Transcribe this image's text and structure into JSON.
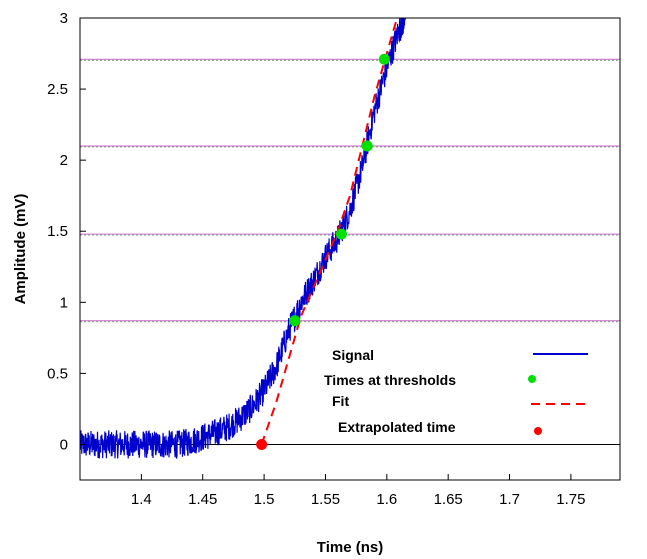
{
  "chart_data": {
    "type": "line",
    "title": "",
    "xlabel": "Time (ns)",
    "ylabel": "Amplitude (mV)",
    "xlim": [
      1.35,
      1.79
    ],
    "ylim": [
      -0.25,
      3.0
    ],
    "x_ticks": [
      "1.4",
      "1.45",
      "1.5",
      "1.55",
      "1.6",
      "1.65",
      "1.7",
      "1.75"
    ],
    "x_tick_values": [
      1.4,
      1.45,
      1.5,
      1.55,
      1.6,
      1.65,
      1.7,
      1.75
    ],
    "y_ticks": [
      "0",
      "0.5",
      "1",
      "1.5",
      "2",
      "2.5",
      "3"
    ],
    "y_tick_values": [
      0,
      0.5,
      1,
      1.5,
      2,
      2.5,
      3
    ],
    "threshold_levels": [
      0.87,
      1.48,
      2.1,
      2.71
    ],
    "zero_line": 0,
    "series": [
      {
        "name": "Signal",
        "color": "#0000cc",
        "style": "solid",
        "x": [
          1.35,
          1.36,
          1.37,
          1.38,
          1.39,
          1.4,
          1.41,
          1.42,
          1.43,
          1.44,
          1.45,
          1.46,
          1.47,
          1.48,
          1.49,
          1.5,
          1.51,
          1.52,
          1.53,
          1.54,
          1.55,
          1.56,
          1.57,
          1.58,
          1.59,
          1.6,
          1.61,
          1.615
        ],
        "y": [
          0.0,
          0.0,
          0.0,
          0.0,
          0.0,
          0.0,
          0.0,
          0.0,
          0.0,
          0.02,
          0.05,
          0.08,
          0.12,
          0.18,
          0.26,
          0.38,
          0.55,
          0.8,
          1.0,
          1.15,
          1.32,
          1.45,
          1.65,
          1.95,
          2.35,
          2.65,
          2.92,
          3.0
        ],
        "noise_amplitude": 0.1
      },
      {
        "name": "Fit",
        "color": "#ff0000",
        "style": "dashed",
        "x": [
          1.498,
          1.51,
          1.52,
          1.53,
          1.54,
          1.55,
          1.56,
          1.57,
          1.58,
          1.59,
          1.6,
          1.61,
          1.62
        ],
        "y": [
          0.0,
          0.3,
          0.6,
          0.9,
          1.1,
          1.3,
          1.5,
          1.75,
          2.1,
          2.45,
          2.75,
          3.05,
          3.3
        ]
      },
      {
        "name": "Times at thresholds",
        "color": "#00e000",
        "style": "markers",
        "x": [
          1.525,
          1.563,
          1.584,
          1.598
        ],
        "y": [
          0.87,
          1.48,
          2.1,
          2.71
        ]
      },
      {
        "name": "Extrapolated time",
        "color": "#ff0000",
        "style": "markers",
        "x": [
          1.498
        ],
        "y": [
          0.0
        ]
      }
    ],
    "legend": {
      "placement": "bottom-right",
      "entries": [
        "Signal",
        "Times at thresholds",
        "Fit",
        "Extrapolated time"
      ]
    },
    "grid": false
  }
}
